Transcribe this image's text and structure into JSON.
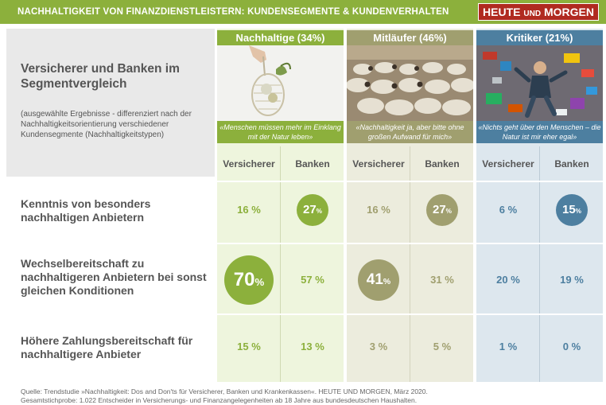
{
  "header": {
    "title": "NACHHALTIGKEIT VON FINANZDIENSTLEISTERN: KUNDENSEGMENTE & KUNDENVERHALTEN",
    "brand_main": "HEUTE",
    "brand_mid": "UND",
    "brand_end": "MORGEN"
  },
  "intro": {
    "heading": "Versicherer und Banken im Segmentvergleich",
    "subheading": "(ausgewählte Ergebnisse - differenziert nach der Nachhaltigkeitsorientierung verschiedener Kundensegmente (Nachhaltigkeitstypen)"
  },
  "segments": [
    {
      "name": "Nachhaltige (34%)",
      "quote": "«Menschen müssen mehr im Einklang mit der Natur leben»",
      "color": "#8cb03c",
      "value_color": "#8cb03c"
    },
    {
      "name": "Mitläufer (46%)",
      "quote": "«Nachhaltigkeit ja, aber bitte ohne großen Aufwand für mich»",
      "color": "#a09f6f",
      "value_color": "#a09f6f"
    },
    {
      "name": "Kritiker (21%)",
      "quote": "«Nichts geht über den Menschen – die Natur ist mir eher egal»",
      "color": "#4d7fa0",
      "value_color": "#4d7fa0"
    }
  ],
  "subcolumns": [
    "Versicherer",
    "Banken"
  ],
  "rows": [
    {
      "label": "Kenntnis von besonders nachhaltigen Anbietern"
    },
    {
      "label": "Wechselbereitschaft zu nachhaltigeren Anbietern bei sonst gleichen Konditionen"
    },
    {
      "label": "Höhere Zahlungsbereitschaft für nachhaltigere Anbieter"
    }
  ],
  "chart_data": {
    "type": "table",
    "title": "Versicherer und Banken im Segmentvergleich",
    "categories": [
      "Kenntnis von besonders nachhaltigen Anbietern",
      "Wechselbereitschaft zu nachhaltigeren Anbietern bei sonst gleichen Konditionen",
      "Höhere Zahlungsbereitschaft für nachhaltigere Anbieter"
    ],
    "series": [
      {
        "name": "Nachhaltige (34%) – Versicherer",
        "values": [
          16,
          70,
          15
        ],
        "highlight": [
          false,
          true,
          false
        ]
      },
      {
        "name": "Nachhaltige (34%) – Banken",
        "values": [
          27,
          57,
          13
        ],
        "highlight": [
          true,
          false,
          false
        ]
      },
      {
        "name": "Mitläufer (46%) – Versicherer",
        "values": [
          16,
          41,
          3
        ],
        "highlight": [
          false,
          true,
          false
        ]
      },
      {
        "name": "Mitläufer (46%) – Banken",
        "values": [
          27,
          31,
          5
        ],
        "highlight": [
          true,
          false,
          false
        ]
      },
      {
        "name": "Kritiker (21%) – Versicherer",
        "values": [
          6,
          20,
          1
        ],
        "highlight": [
          false,
          false,
          false
        ]
      },
      {
        "name": "Kritiker (21%) – Banken",
        "values": [
          15,
          19,
          0
        ],
        "highlight": [
          true,
          false,
          false
        ]
      }
    ],
    "unit": "%"
  },
  "source": {
    "line1": "Quelle: Trendstudie »Nachhaltigkeit: Dos and Don'ts für Versicherer, Banken und Krankenkassen«. HEUTE UND MORGEN, März 2020.",
    "line2": "Gesamtstichprobe: 1.022 Entscheider in Versicherungs- und Finanzangelegenheiten ab 18 Jahre aus bundesdeutschen Haushalten."
  }
}
